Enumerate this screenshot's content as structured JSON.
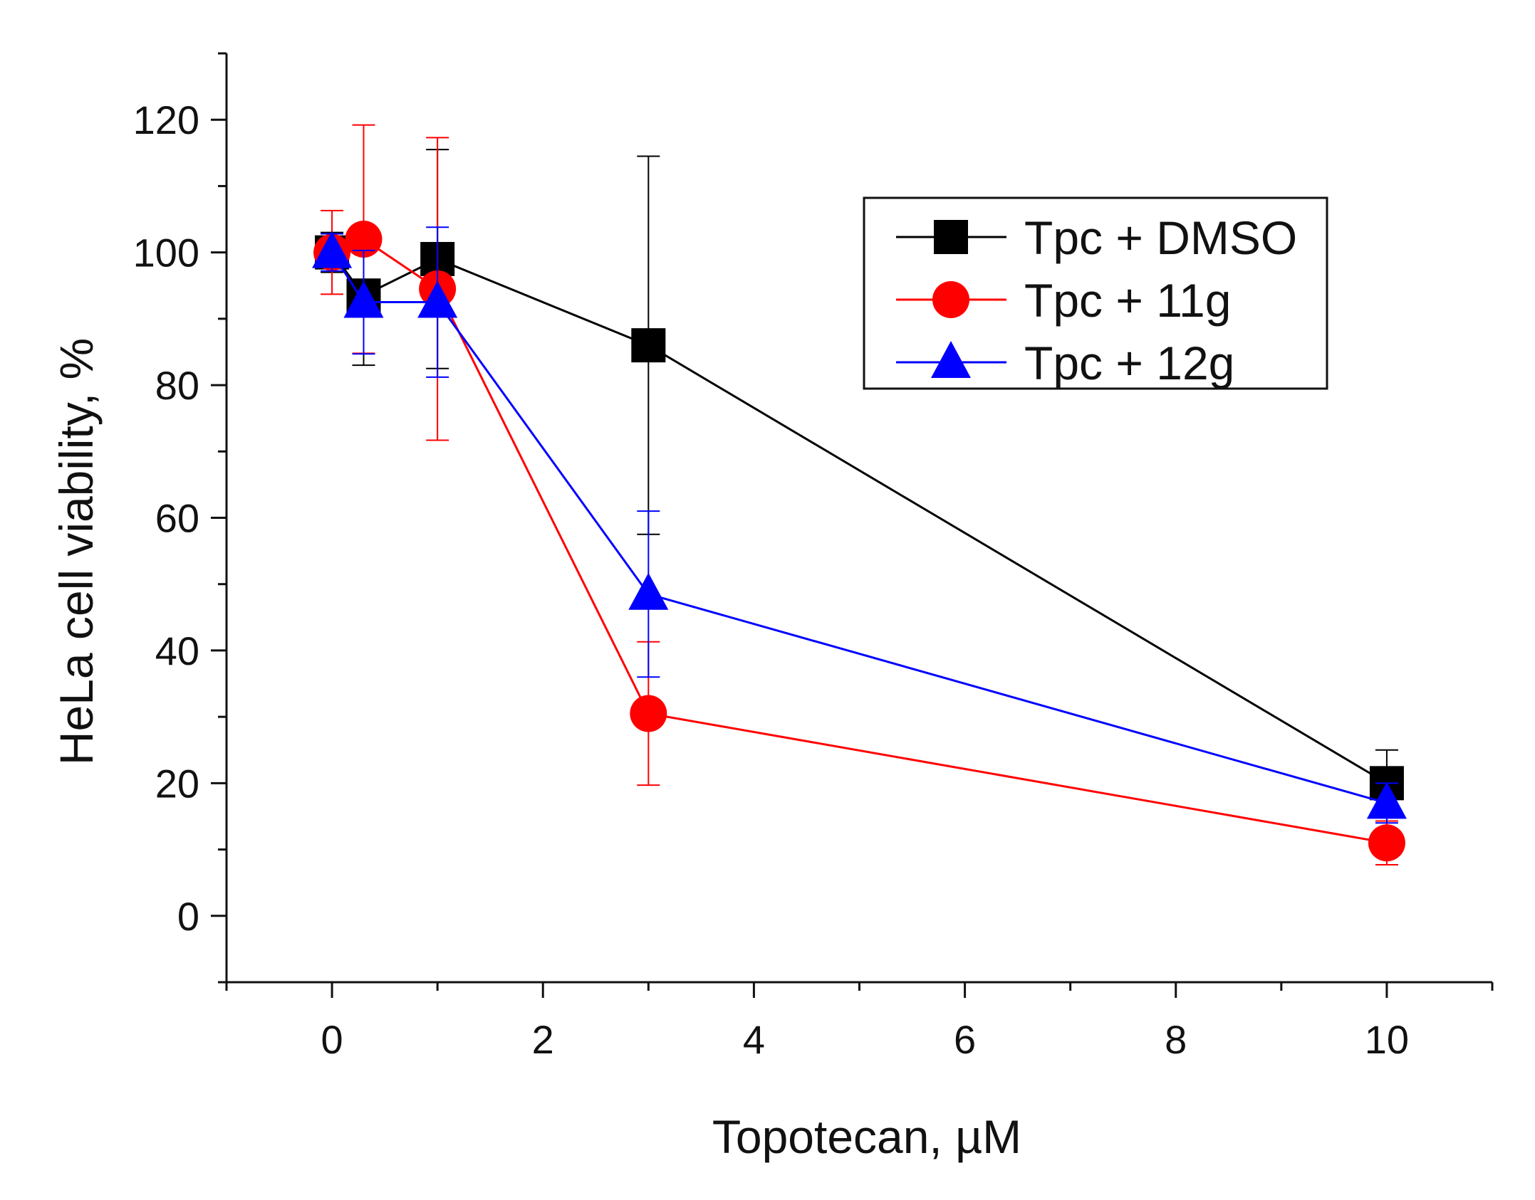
{
  "chart_data": {
    "type": "line",
    "xlabel": "Topotecan, µM",
    "ylabel": "HeLa cell viability, %",
    "xlim": [
      -1,
      11
    ],
    "ylim": [
      -10,
      130
    ],
    "x_ticks": [
      0,
      2,
      4,
      6,
      8,
      10
    ],
    "x_tick_labels": [
      "0",
      "2",
      "4",
      "6",
      "8",
      "10"
    ],
    "y_ticks": [
      0,
      20,
      40,
      60,
      80,
      100,
      120
    ],
    "y_tick_labels": [
      "0",
      "20",
      "40",
      "60",
      "80",
      "100",
      "120"
    ],
    "legend_position": "top-right",
    "series": [
      {
        "name": "Tpc + DMSO",
        "color": "#000000",
        "marker": "square",
        "x": [
          0,
          0.3,
          1,
          3,
          10
        ],
        "y": [
          100,
          93.5,
          99,
          86,
          20
        ],
        "err": [
          3,
          10.5,
          16.5,
          28.5,
          5
        ]
      },
      {
        "name": "Tpc + 11g",
        "color": "#ff0000",
        "marker": "circle",
        "x": [
          0,
          0.3,
          1,
          3,
          10
        ],
        "y": [
          100,
          102,
          94.5,
          30.5,
          11
        ],
        "err": [
          6.3,
          17.2,
          22.8,
          10.8,
          3.3
        ]
      },
      {
        "name": "Tpc + 12g",
        "color": "#0000ff",
        "marker": "triangle",
        "x": [
          0,
          0.3,
          1,
          3,
          10
        ],
        "y": [
          100,
          92.5,
          92.5,
          48.5,
          17
        ],
        "err": [
          2.8,
          7.8,
          11.3,
          12.5,
          3
        ]
      }
    ]
  }
}
